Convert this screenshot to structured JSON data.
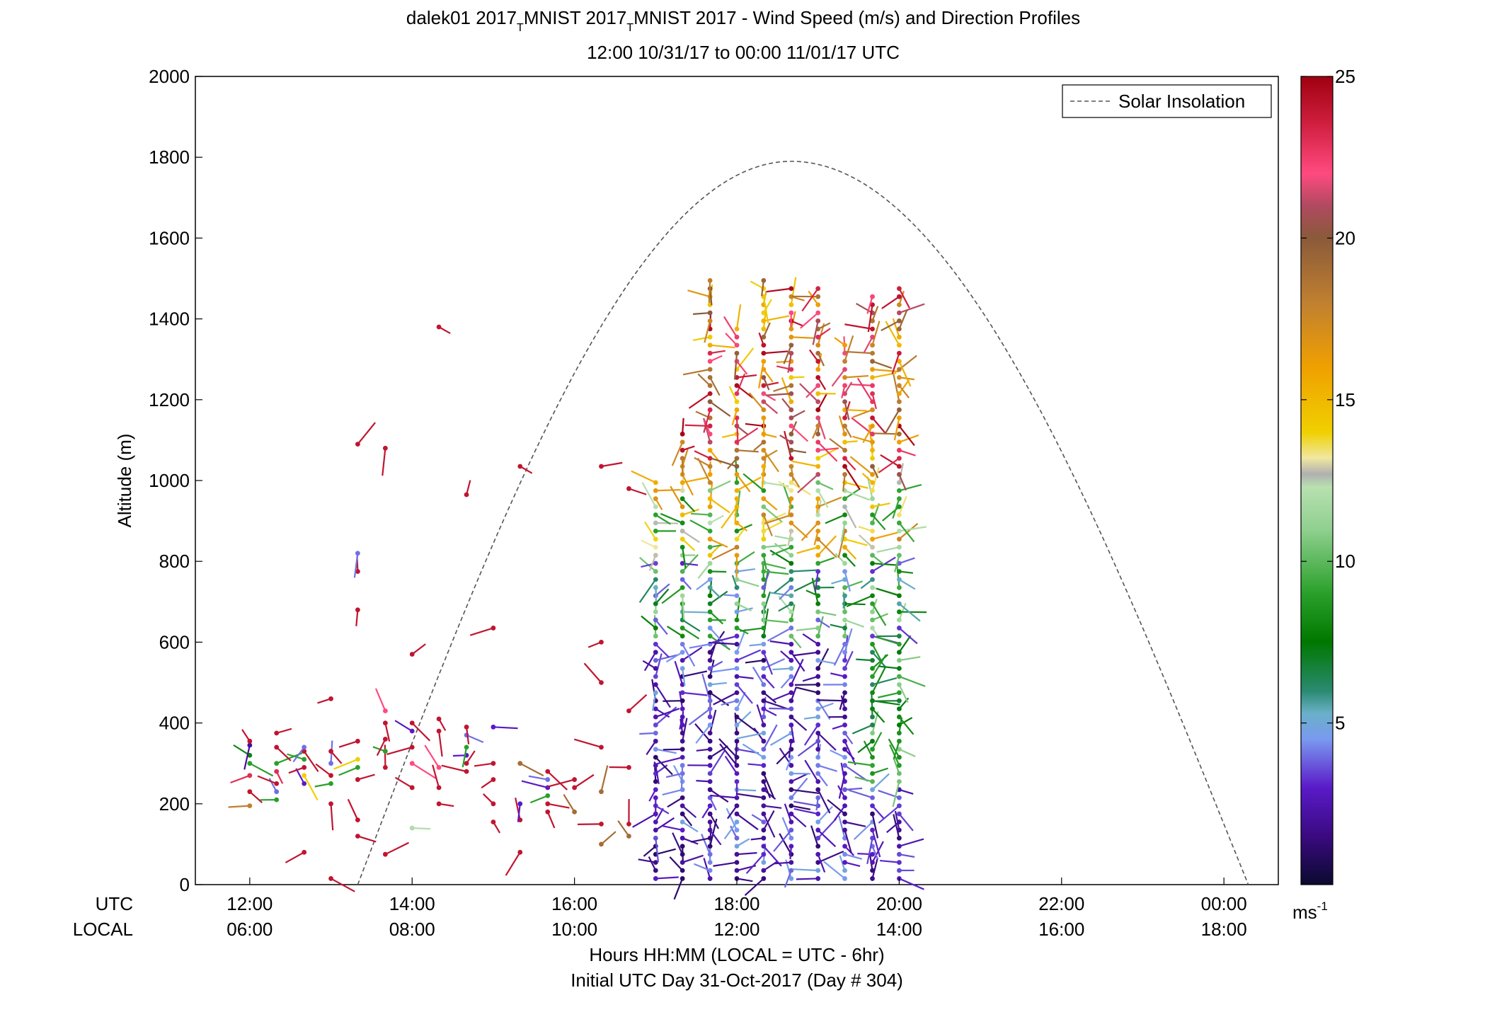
{
  "chart_data": {
    "type": "wind-barb-profile",
    "title_line1_parts": [
      "dalek01 2017",
      "T",
      "MNIST 2017",
      "T",
      "MNIST 2017 - Wind Speed (m/s) and Direction Profiles"
    ],
    "title_line2": "12:00 10/31/17 to 00:00 11/01/17  UTC",
    "ylabel": "Altitude (m)",
    "ylim": [
      0,
      2000
    ],
    "y_ticks": [
      "0",
      "200",
      "400",
      "600",
      "800",
      "1000",
      "1200",
      "1400",
      "1600",
      "1800",
      "2000"
    ],
    "x_row_utc_label": "UTC",
    "x_row_local_label": "LOCAL",
    "x_ticks_utc": [
      "12:00",
      "14:00",
      "16:00",
      "18:00",
      "20:00",
      "22:00",
      "00:00"
    ],
    "x_ticks_local": [
      "06:00",
      "08:00",
      "10:00",
      "12:00",
      "14:00",
      "16:00",
      "18:00"
    ],
    "xlabel_line1": "Hours HH:MM  (LOCAL = UTC - 6hr)",
    "xlabel_line2": "Initial UTC Day 31-Oct-2017 (Day # 304)",
    "xlim_hours": [
      11.33,
      24.67
    ],
    "legend": {
      "label": "Solar Insolation",
      "placement": "top-right",
      "style": "dashed gray"
    },
    "solar_insolation": {
      "start_hour": 13.33,
      "peak_hour": 18.67,
      "peak_altitude": 1790,
      "end_hour": 24.3
    },
    "colorbar": {
      "min": 0,
      "max": 25,
      "ticks": [
        "5",
        "10",
        "15",
        "20",
        "25"
      ],
      "unit_base": "ms",
      "unit_exp": "-1",
      "stops": [
        {
          "v": 0,
          "c": "#0a0a2e"
        },
        {
          "v": 1.5,
          "c": "#3a0a80"
        },
        {
          "v": 3,
          "c": "#5a1ac8"
        },
        {
          "v": 4.5,
          "c": "#7a9af0"
        },
        {
          "v": 5.3,
          "c": "#6ab0c8"
        },
        {
          "v": 6,
          "c": "#2a8a70"
        },
        {
          "v": 7.5,
          "c": "#007800"
        },
        {
          "v": 9,
          "c": "#2aa02a"
        },
        {
          "v": 11,
          "c": "#90d090"
        },
        {
          "v": 12.3,
          "c": "#b8e0b0"
        },
        {
          "v": 12.7,
          "c": "#b0b0b0"
        },
        {
          "v": 13.2,
          "c": "#f0e8a0"
        },
        {
          "v": 14,
          "c": "#f0d000"
        },
        {
          "v": 16,
          "c": "#f0a000"
        },
        {
          "v": 18,
          "c": "#c08030"
        },
        {
          "v": 20,
          "c": "#8a5a3a"
        },
        {
          "v": 21,
          "c": "#b04a60"
        },
        {
          "v": 22,
          "c": "#ff4a80"
        },
        {
          "v": 23.5,
          "c": "#d02040"
        },
        {
          "v": 25,
          "c": "#a00010"
        }
      ]
    },
    "profiles": [
      {
        "t": 12.0,
        "speed": [
          18,
          24,
          23,
          9,
          8,
          2,
          24
        ],
        "alt": [
          195,
          230,
          270,
          300,
          320,
          345,
          355
        ]
      },
      {
        "t": 12.33,
        "speed": [
          9,
          4,
          24,
          23,
          9,
          24,
          24
        ],
        "alt": [
          210,
          230,
          250,
          280,
          300,
          340,
          375
        ]
      },
      {
        "t": 12.67,
        "speed": [
          24,
          3,
          14,
          24,
          9,
          24,
          4
        ],
        "alt": [
          80,
          250,
          270,
          290,
          310,
          330,
          340
        ]
      },
      {
        "t": 13.0,
        "speed": [
          24,
          24,
          9,
          24,
          4,
          24,
          24
        ],
        "alt": [
          15,
          200,
          250,
          270,
          300,
          330,
          460
        ]
      },
      {
        "t": 13.33,
        "speed": [
          24,
          24,
          24,
          9,
          14,
          24,
          24,
          24,
          4,
          24
        ],
        "alt": [
          120,
          160,
          260,
          290,
          310,
          355,
          680,
          775,
          820,
          1090
        ]
      },
      {
        "t": 13.67,
        "speed": [
          24,
          24,
          9,
          24,
          24,
          22,
          24
        ],
        "alt": [
          75,
          290,
          330,
          360,
          400,
          430,
          1080
        ]
      },
      {
        "t": 14.0,
        "speed": [
          12,
          24,
          22,
          24,
          3,
          24,
          24
        ],
        "alt": [
          140,
          240,
          300,
          340,
          380,
          400,
          570
        ]
      },
      {
        "t": 14.33,
        "speed": [
          24,
          24,
          22,
          24,
          24,
          24
        ],
        "alt": [
          200,
          240,
          290,
          380,
          410,
          1380
        ]
      },
      {
        "t": 14.67,
        "speed": [
          24,
          24,
          3,
          9,
          4,
          24,
          24
        ],
        "alt": [
          280,
          300,
          320,
          340,
          370,
          390,
          965
        ]
      },
      {
        "t": 15.0,
        "speed": [
          24,
          24,
          24,
          24,
          3,
          24
        ],
        "alt": [
          155,
          200,
          260,
          300,
          390,
          635
        ]
      },
      {
        "t": 15.33,
        "speed": [
          24,
          24,
          3,
          19,
          24
        ],
        "alt": [
          80,
          160,
          200,
          300,
          1035
        ]
      },
      {
        "t": 15.67,
        "speed": [
          24,
          24,
          9,
          3,
          4,
          24
        ],
        "alt": [
          180,
          200,
          220,
          240,
          260,
          280
        ]
      },
      {
        "t": 16.0,
        "speed": [
          19,
          24,
          24
        ],
        "alt": [
          180,
          240,
          260
        ]
      },
      {
        "t": 16.33,
        "speed": [
          19,
          24,
          19,
          24,
          24,
          24,
          24
        ],
        "alt": [
          100,
          150,
          230,
          340,
          500,
          600,
          1035
        ]
      },
      {
        "t": 16.67,
        "speed": [
          19,
          24,
          24,
          24,
          24
        ],
        "alt": [
          120,
          150,
          290,
          430,
          980
        ]
      },
      {
        "t": 17.0,
        "dense": true,
        "top": 1000
      },
      {
        "t": 17.33,
        "dense": true,
        "top": 1130
      },
      {
        "t": 17.67,
        "dense": true,
        "top": 1500
      },
      {
        "t": 18.0,
        "dense": true,
        "top": 1390
      },
      {
        "t": 18.33,
        "dense": true,
        "top": 1500
      },
      {
        "t": 18.67,
        "dense": true,
        "top": 1490
      },
      {
        "t": 19.0,
        "dense": true,
        "top": 1480
      },
      {
        "t": 19.33,
        "dense": true,
        "top": 1340
      },
      {
        "t": 19.67,
        "dense": true,
        "top": 1460
      },
      {
        "t": 20.0,
        "dense": true,
        "top": 1490
      }
    ]
  }
}
